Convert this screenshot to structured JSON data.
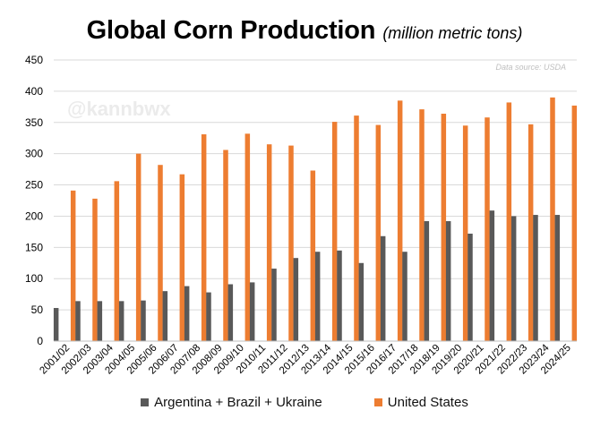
{
  "header": {
    "title": "Global Corn Production",
    "subtitle": "(million metric tons)"
  },
  "source_note": "Data source: USDA",
  "watermark": "@kannbwx",
  "colors": {
    "argentina_brazil_ukraine": "#595959",
    "united_states": "#ED7D31",
    "gridline": "#d9d9d9"
  },
  "legend": {
    "series1": "Argentina + Brazil + Ukraine",
    "series2": "United States"
  },
  "chart_data": {
    "type": "bar",
    "title": "Global Corn Production",
    "subtitle": "(million metric tons)",
    "xlabel": "",
    "ylabel": "",
    "ylim": [
      0,
      450
    ],
    "yticks": [
      0,
      50,
      100,
      150,
      200,
      250,
      300,
      350,
      400,
      450
    ],
    "grid": true,
    "legend_position": "bottom",
    "categories": [
      "2001/02",
      "2002/03",
      "2003/04",
      "2004/05",
      "2005/06",
      "2006/07",
      "2007/08",
      "2008/09",
      "2009/10",
      "2010/11",
      "2011/12",
      "2012/13",
      "2013/14",
      "2014/15",
      "2015/16",
      "2016/17",
      "2017/18",
      "2018/19",
      "2019/20",
      "2020/21",
      "2021/22",
      "2022/23",
      "2023/24",
      "2024/25"
    ],
    "series": [
      {
        "name": "Argentina + Brazil + Ukraine",
        "color": "#595959",
        "values": [
          53,
          64,
          64,
          64,
          65,
          80,
          88,
          78,
          91,
          94,
          116,
          133,
          143,
          145,
          125,
          168,
          143,
          192,
          192,
          172,
          209,
          200,
          202,
          202
        ]
      },
      {
        "name": "United States",
        "color": "#ED7D31",
        "values": [
          241,
          228,
          256,
          300,
          282,
          267,
          331,
          306,
          332,
          315,
          313,
          273,
          351,
          361,
          346,
          385,
          371,
          364,
          345,
          358,
          382,
          347,
          390,
          377
        ]
      }
    ]
  }
}
